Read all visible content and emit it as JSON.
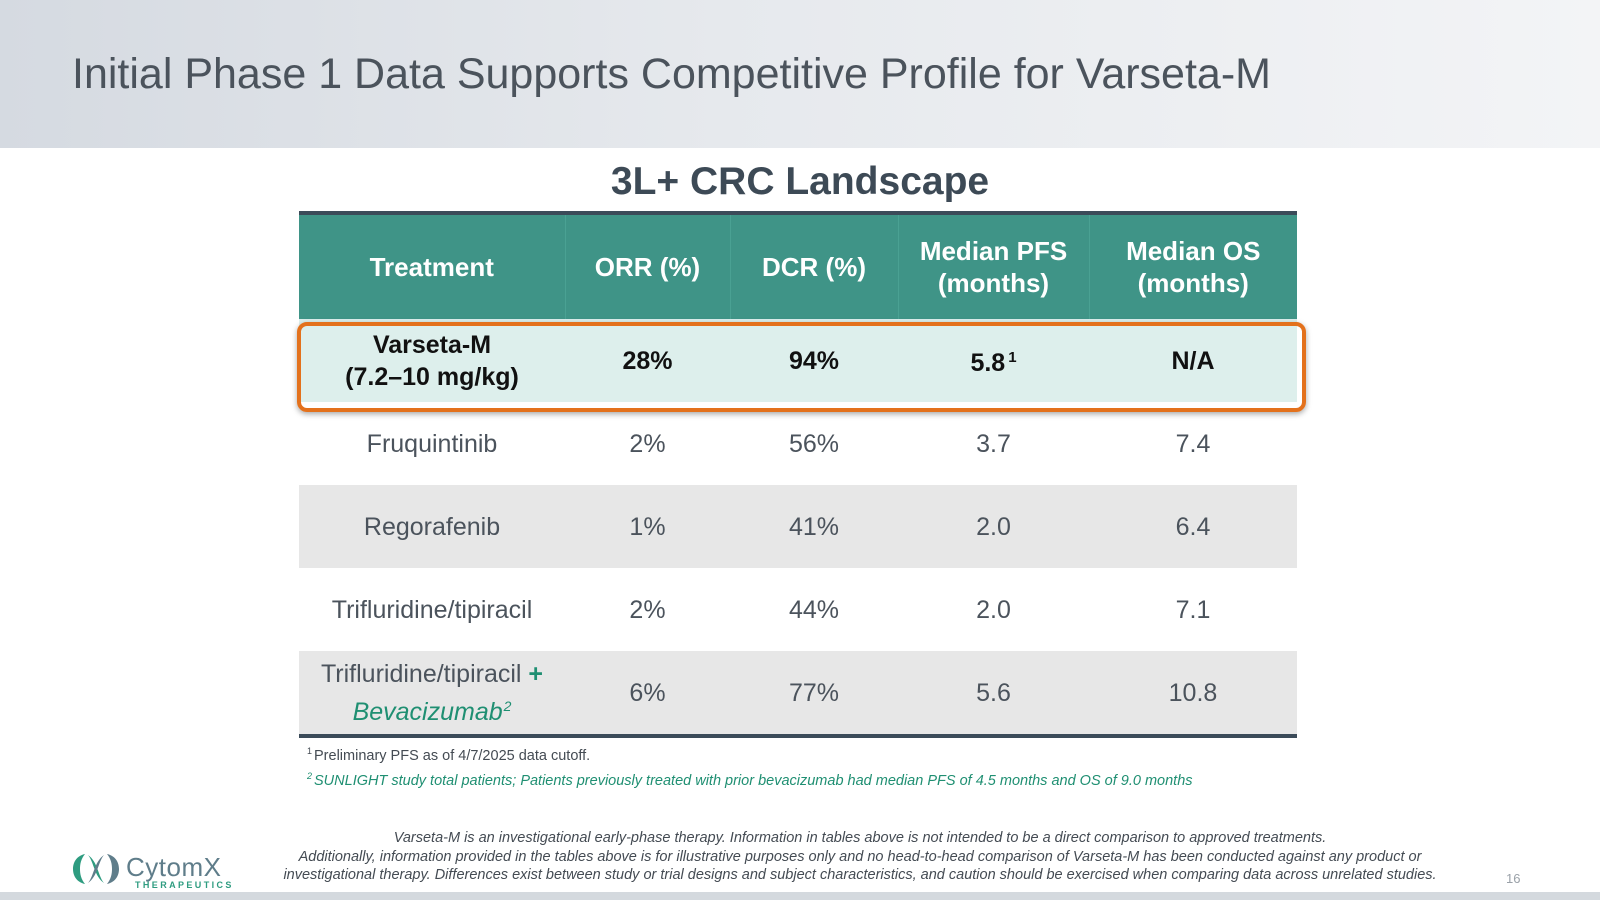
{
  "slide": {
    "title": "Initial Phase 1 Data Supports Competitive Profile for Varseta-M",
    "page_number": "16"
  },
  "table": {
    "title": "3L+ CRC Landscape",
    "headers": [
      {
        "line1": "Treatment",
        "line2": ""
      },
      {
        "line1": "ORR (%)",
        "line2": ""
      },
      {
        "line1": "DCR (%)",
        "line2": ""
      },
      {
        "line1": "Median PFS",
        "line2": "(months)"
      },
      {
        "line1": "Median OS",
        "line2": "(months)"
      }
    ],
    "rows": [
      {
        "name": "Varseta-M",
        "name_line2": "(7.2–10 mg/kg)",
        "orr": "28%",
        "dcr": "94%",
        "pfs": "5.8",
        "pfs_note": "1",
        "os": "N/A"
      },
      {
        "name": "Fruquintinib",
        "orr": "2%",
        "dcr": "56%",
        "pfs": "3.7",
        "os": "7.4"
      },
      {
        "name": "Regorafenib",
        "orr": "1%",
        "dcr": "41%",
        "pfs": "2.0",
        "os": "6.4"
      },
      {
        "name": "Trifluridine/tipiracil",
        "orr": "2%",
        "dcr": "44%",
        "pfs": "2.0",
        "os": "7.1"
      },
      {
        "name": "Trifluridine/tipiracil",
        "plus": "+",
        "combo": "Bevacizumab",
        "combo_note": "2",
        "orr": "6%",
        "dcr": "77%",
        "pfs": "5.6",
        "os": "10.8"
      }
    ]
  },
  "footnotes": {
    "fn1_mark": "1",
    "fn1": "Preliminary PFS as of 4/7/2025 data cutoff.",
    "fn2_mark": "2",
    "fn2": "SUNLIGHT study total patients; Patients previously treated with prior bevacizumab had median PFS of 4.5 months and OS of 9.0 months"
  },
  "disclaimer": {
    "line1": "Varseta-M is an investigational early-phase therapy. Information in tables above is not intended to be a direct comparison to approved treatments.",
    "line2": "Additionally, information provided in the tables above is for illustrative purposes only and no head-to-head comparison of Varseta-M has been conducted against any product or",
    "line3": "investigational therapy. Differences exist between study or trial designs and subject characteristics, and caution should be exercised when comparing data across unrelated studies."
  },
  "logo": {
    "name": "CytomX",
    "subtitle": "THERAPEUTICS",
    "icon": "cytomx-logo-mark",
    "colors": {
      "teal": "#2e9c80",
      "slate": "#5f7d8a"
    }
  },
  "colors": {
    "header_teal": "#3f9487",
    "highlight_fill": "#ddefec",
    "highlight_border": "#e3711c",
    "shaded_row": "#e7e7e7",
    "rule": "#3b4b59",
    "accent_green": "#1f8f72"
  }
}
